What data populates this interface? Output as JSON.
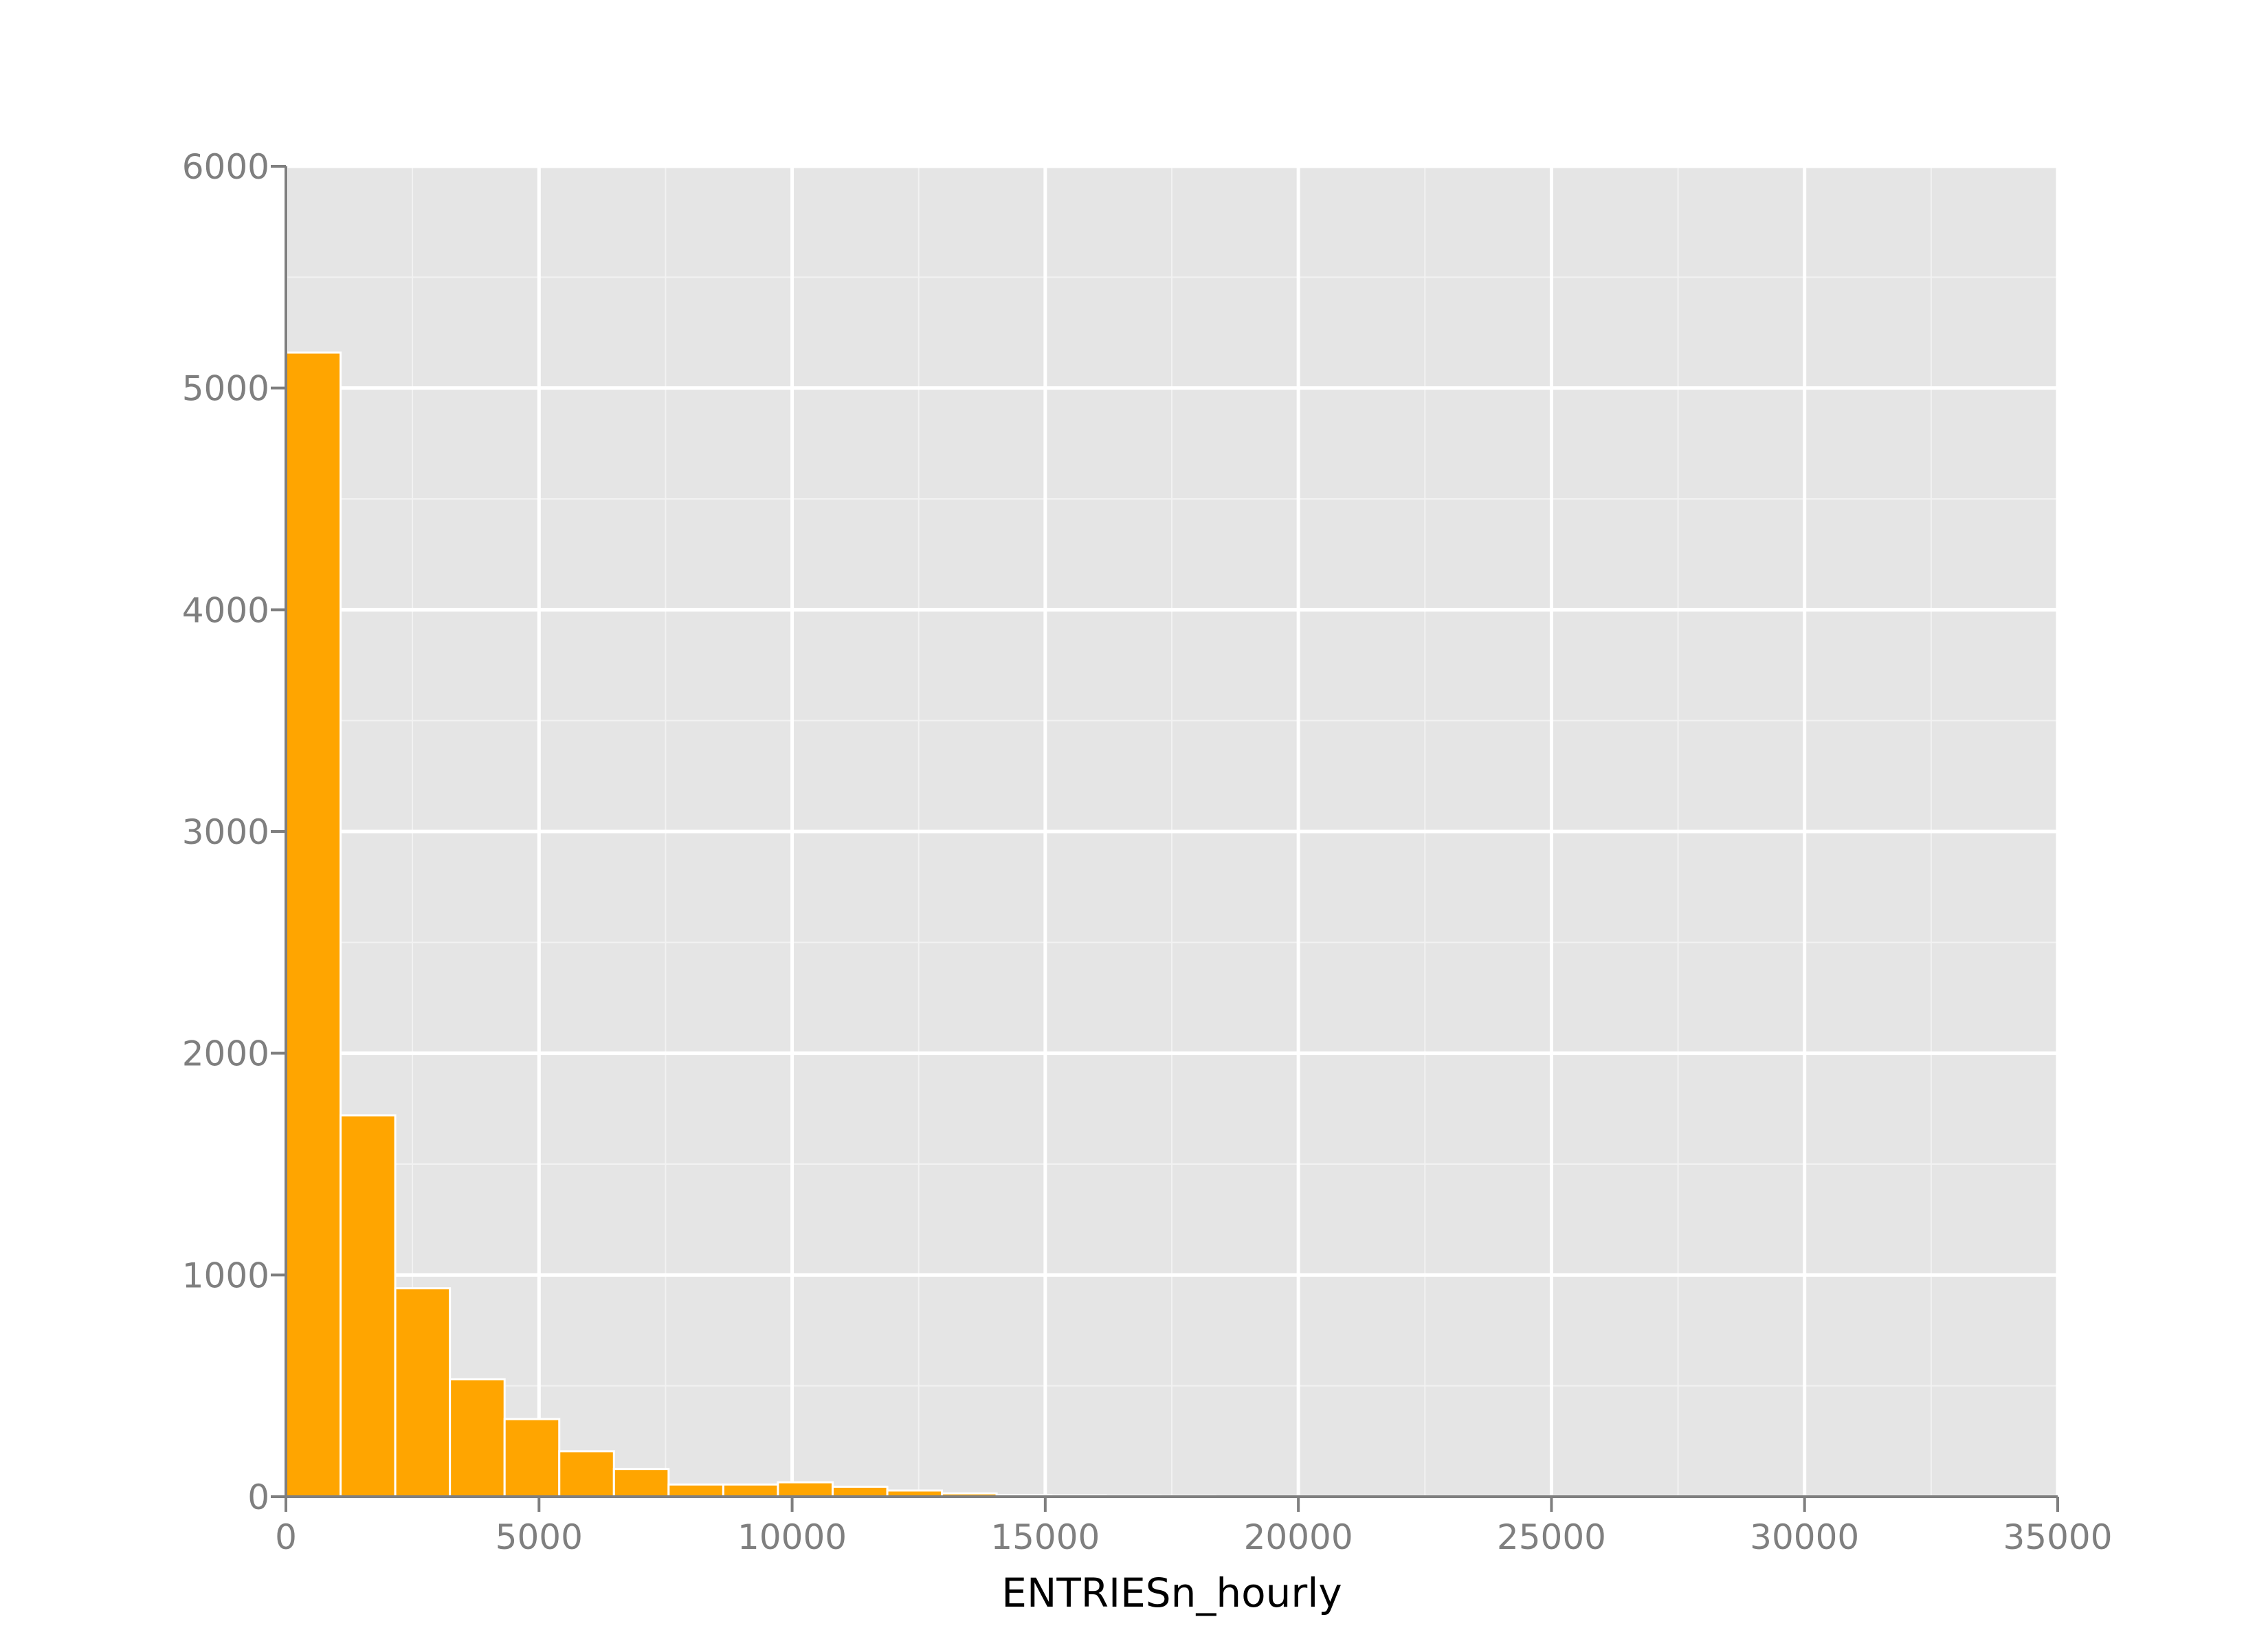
{
  "chart_data": {
    "type": "bar",
    "title": "",
    "xlabel": "ENTRIESn_hourly",
    "ylabel": "",
    "xlim": [
      0,
      35000
    ],
    "ylim": [
      0,
      6000
    ],
    "grid": true,
    "bin_width": 1080,
    "bins": [
      {
        "x0": 0,
        "x1": 1080,
        "count": 5160
      },
      {
        "x0": 1080,
        "x1": 2160,
        "count": 1720
      },
      {
        "x0": 2160,
        "x1": 3240,
        "count": 940
      },
      {
        "x0": 3240,
        "x1": 4320,
        "count": 530
      },
      {
        "x0": 4320,
        "x1": 5400,
        "count": 350
      },
      {
        "x0": 5400,
        "x1": 6480,
        "count": 205
      },
      {
        "x0": 6480,
        "x1": 7560,
        "count": 125
      },
      {
        "x0": 7560,
        "x1": 8640,
        "count": 55
      },
      {
        "x0": 8640,
        "x1": 9720,
        "count": 55
      },
      {
        "x0": 9720,
        "x1": 10800,
        "count": 65
      },
      {
        "x0": 10800,
        "x1": 11880,
        "count": 45
      },
      {
        "x0": 11880,
        "x1": 12960,
        "count": 28
      },
      {
        "x0": 12960,
        "x1": 14040,
        "count": 15
      },
      {
        "x0": 14040,
        "x1": 15120,
        "count": 8
      },
      {
        "x0": 15120,
        "x1": 16200,
        "count": 6
      },
      {
        "x0": 16200,
        "x1": 17280,
        "count": 5
      },
      {
        "x0": 17280,
        "x1": 18360,
        "count": 4
      },
      {
        "x0": 18360,
        "x1": 19440,
        "count": 0
      },
      {
        "x0": 19440,
        "x1": 20520,
        "count": 0
      },
      {
        "x0": 20520,
        "x1": 21600,
        "count": 0
      },
      {
        "x0": 21600,
        "x1": 22680,
        "count": 0
      },
      {
        "x0": 22680,
        "x1": 23760,
        "count": 0
      },
      {
        "x0": 23760,
        "x1": 24840,
        "count": 0
      },
      {
        "x0": 24840,
        "x1": 25920,
        "count": 0
      },
      {
        "x0": 25920,
        "x1": 27000,
        "count": 0
      },
      {
        "x0": 27000,
        "x1": 28080,
        "count": 0
      },
      {
        "x0": 28080,
        "x1": 29160,
        "count": 0
      },
      {
        "x0": 29160,
        "x1": 30240,
        "count": 0
      },
      {
        "x0": 30240,
        "x1": 31320,
        "count": 0
      },
      {
        "x0": 31320,
        "x1": 32400,
        "count": 0
      },
      {
        "x0": 32400,
        "x1": 33480,
        "count": 1
      }
    ],
    "x_ticks": [
      0,
      5000,
      10000,
      15000,
      20000,
      25000,
      30000,
      35000
    ],
    "x_tick_labels": [
      "0",
      "5000",
      "10000",
      "15000",
      "20000",
      "25000",
      "30000",
      "35000"
    ],
    "y_ticks": [
      0,
      1000,
      2000,
      3000,
      4000,
      5000,
      6000
    ],
    "y_tick_labels": [
      "0",
      "1000",
      "2000",
      "3000",
      "4000",
      "5000",
      "6000"
    ],
    "x_minor_ticks": [
      2500,
      7500,
      12500,
      17500,
      22500,
      27500,
      32500
    ],
    "y_minor_ticks": [
      500,
      1500,
      2500,
      3500,
      4500,
      5500
    ],
    "colors": {
      "bar": "#ffa500",
      "bar_edge": "#ffffff",
      "panel": "#e5e5e5",
      "grid_major": "#ffffff",
      "grid_minor": "#f2f2f2",
      "tick": "#7f7f7f",
      "axis_title": "#000000"
    }
  }
}
